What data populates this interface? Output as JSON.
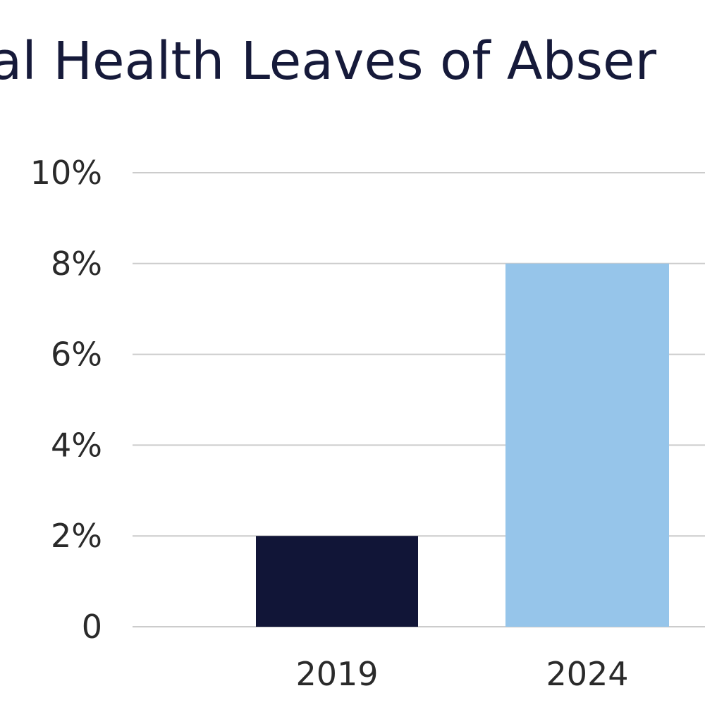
{
  "chart_data": {
    "type": "bar",
    "title": "ntal Health Leaves of Abser",
    "categories": [
      "2019",
      "2024"
    ],
    "values": [
      2,
      8
    ],
    "bar_colors": [
      "#111537",
      "#96c5ea"
    ],
    "ylim": [
      0,
      10
    ],
    "y_ticks": [
      0,
      2,
      4,
      6,
      8,
      10
    ],
    "y_tick_labels": [
      "0",
      "2%",
      "4%",
      "6%",
      "8%",
      "10%"
    ],
    "grid": true,
    "gridline_color": "#cccccc",
    "xlabel": "",
    "ylabel": ""
  }
}
